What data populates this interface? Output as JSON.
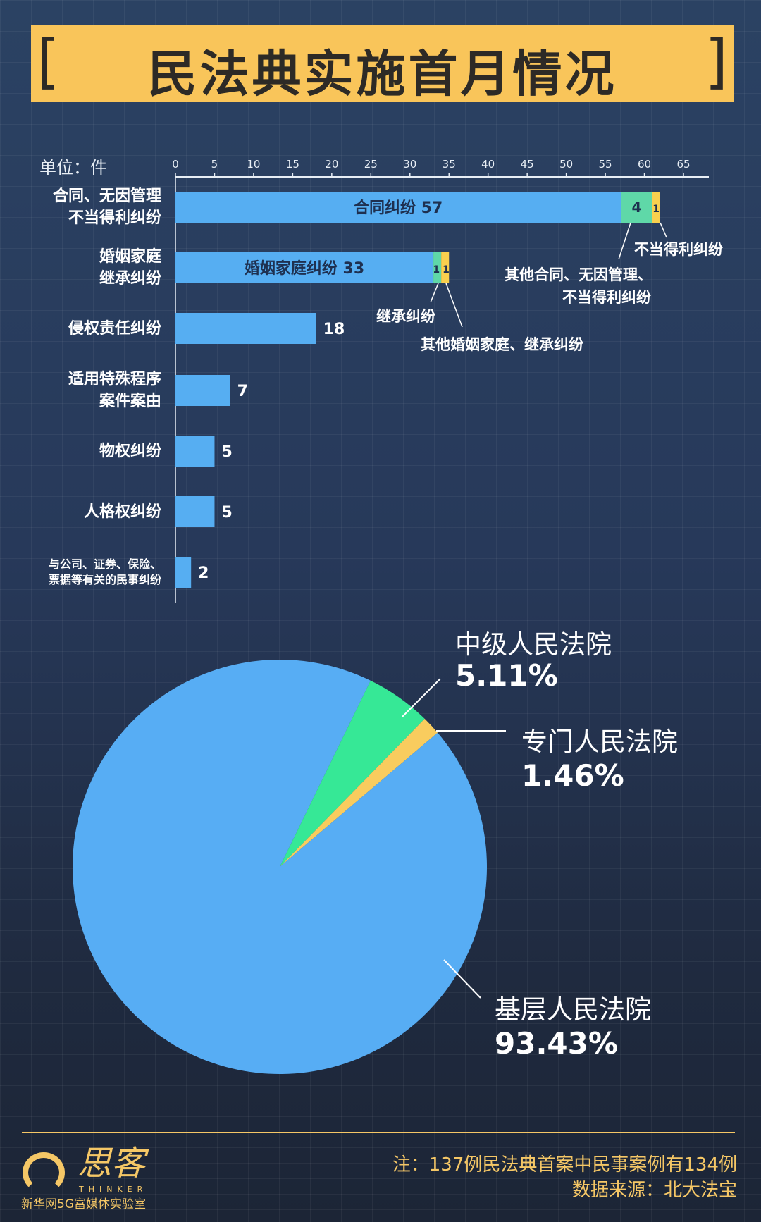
{
  "title": "民法典实施首月情况",
  "bracket_left": "[",
  "bracket_right": "]",
  "colors": {
    "bar": "#56aef2",
    "green": "#5fd8a8",
    "yellow": "#f9d04e",
    "pie_blue": "#57adf4",
    "pie_green": "#36e896",
    "pie_yellow": "#f9cc5e",
    "banner": "#f9c55a"
  },
  "chart_data": [
    {
      "type": "bar",
      "orientation": "horizontal",
      "stacked": true,
      "unit_label": "单位：件",
      "xlim": [
        0,
        65
      ],
      "xticks": [
        "0",
        "5",
        "10",
        "15",
        "20",
        "25",
        "30",
        "35",
        "40",
        "45",
        "50",
        "55",
        "60",
        "65"
      ],
      "categories": [
        "合同、无因管理\n不当得利纠纷",
        "婚姻家庭\n继承纠纷",
        "侵权责任纠纷",
        "适用特殊程序\n案件案由",
        "物权纠纷",
        "人格权纠纷",
        "与公司、证券、保险、\n票据等有关的民事纠纷"
      ],
      "series": [
        {
          "values": [
            57,
            33,
            18,
            7,
            5,
            5,
            2
          ]
        },
        {
          "values": [
            4,
            1,
            0,
            0,
            0,
            0,
            0
          ]
        },
        {
          "values": [
            1,
            1,
            0,
            0,
            0,
            0,
            0
          ]
        }
      ],
      "bar_labels": [
        "合同纠纷  57",
        "婚姻家庭纠纷   33",
        "18",
        "7",
        "5",
        "5",
        "2"
      ],
      "segment_labels": {
        "r0_green": "4",
        "r0_yellow": "1",
        "r1_green": "1",
        "r1_yellow": "1"
      },
      "annotations": {
        "unjust": "不当得利纠纷",
        "other_contract_1": "其他合同、无因管理、",
        "other_contract_2": "不当得利纠纷",
        "inherit": "继承纠纷",
        "other_marriage": "其他婚姻家庭、继承纠纷"
      }
    },
    {
      "type": "pie",
      "slices": [
        {
          "name": "中级人民法院",
          "value": 5.11,
          "label": "5.11%"
        },
        {
          "name": "专门人民法院",
          "value": 1.46,
          "label": "1.46%"
        },
        {
          "name": "基层人民法院",
          "value": 93.43,
          "label": "93.43%"
        }
      ]
    }
  ],
  "footer": {
    "note": "注：137例民法典首案中民事案例有134例",
    "source": "数据来源：北大法宝",
    "logo_text": "思客",
    "logo_sub": "THINKER",
    "org": "新华网5G富媒体实验室"
  }
}
